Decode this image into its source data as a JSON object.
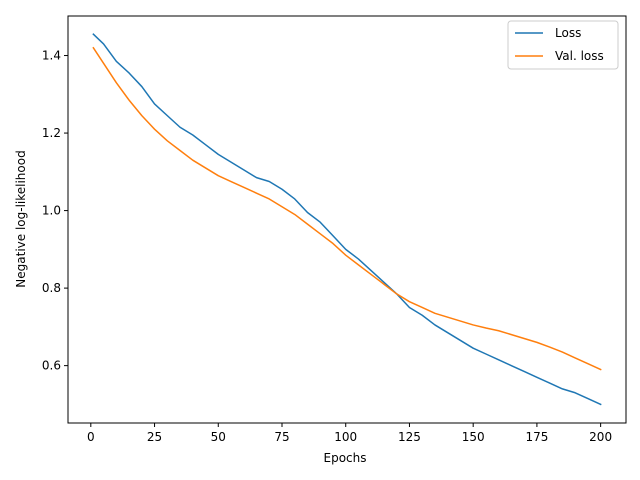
{
  "chart_data": {
    "type": "line",
    "title": "",
    "xlabel": "Epochs",
    "ylabel": "Negative log-likelihood",
    "xlim": [
      -8.95,
      209.95
    ],
    "ylim": [
      0.452,
      1.502
    ],
    "xticks": [
      0,
      25,
      50,
      75,
      100,
      125,
      150,
      175,
      200
    ],
    "xtick_labels": [
      "0",
      "25",
      "50",
      "75",
      "100",
      "125",
      "150",
      "175",
      "200"
    ],
    "yticks": [
      0.6,
      0.8,
      1.0,
      1.2,
      1.4
    ],
    "ytick_labels": [
      "0.6",
      "0.8",
      "1.0",
      "1.2",
      "1.4"
    ],
    "grid": false,
    "legend_position": "top-right",
    "series": [
      {
        "name": "Loss",
        "color": "#1f77b4",
        "x": [
          1,
          5,
          10,
          15,
          20,
          25,
          30,
          35,
          40,
          45,
          50,
          55,
          60,
          65,
          70,
          75,
          80,
          85,
          90,
          95,
          100,
          105,
          110,
          115,
          120,
          125,
          130,
          135,
          140,
          145,
          150,
          155,
          160,
          165,
          170,
          175,
          180,
          185,
          190,
          195,
          200
        ],
        "y": [
          1.455,
          1.43,
          1.385,
          1.355,
          1.32,
          1.275,
          1.245,
          1.215,
          1.195,
          1.17,
          1.145,
          1.125,
          1.105,
          1.085,
          1.075,
          1.055,
          1.03,
          0.995,
          0.97,
          0.935,
          0.9,
          0.875,
          0.845,
          0.815,
          0.785,
          0.75,
          0.73,
          0.705,
          0.685,
          0.665,
          0.645,
          0.63,
          0.615,
          0.6,
          0.585,
          0.57,
          0.555,
          0.54,
          0.53,
          0.515,
          0.5
        ]
      },
      {
        "name": "Val. loss",
        "color": "#ff7f0e",
        "x": [
          1,
          5,
          10,
          15,
          20,
          25,
          30,
          35,
          40,
          45,
          50,
          55,
          60,
          65,
          70,
          75,
          80,
          85,
          90,
          95,
          100,
          105,
          110,
          115,
          120,
          125,
          130,
          135,
          140,
          145,
          150,
          155,
          160,
          165,
          170,
          175,
          180,
          185,
          190,
          195,
          200
        ],
        "y": [
          1.42,
          1.38,
          1.33,
          1.285,
          1.245,
          1.21,
          1.18,
          1.155,
          1.13,
          1.11,
          1.09,
          1.075,
          1.06,
          1.045,
          1.03,
          1.01,
          0.99,
          0.965,
          0.94,
          0.915,
          0.885,
          0.86,
          0.835,
          0.81,
          0.785,
          0.765,
          0.75,
          0.735,
          0.725,
          0.715,
          0.705,
          0.697,
          0.69,
          0.68,
          0.67,
          0.66,
          0.648,
          0.635,
          0.62,
          0.605,
          0.59
        ]
      }
    ]
  }
}
